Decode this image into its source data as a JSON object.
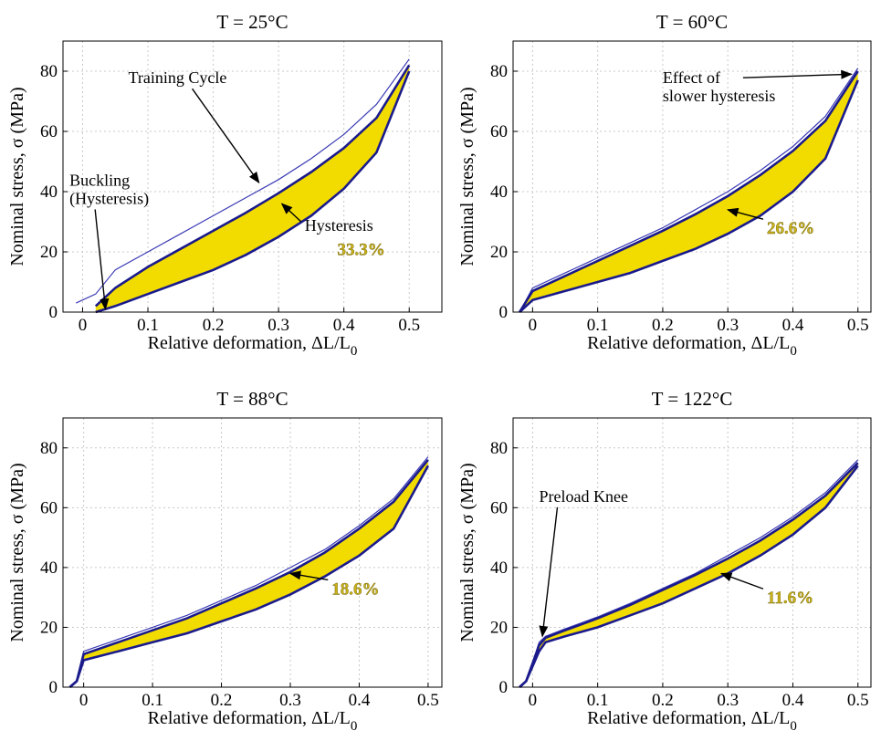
{
  "colors": {
    "fill": "#f2dc00",
    "loop_line": "#1a1a8c",
    "thin_line": "#3a3ab5",
    "grid": "#c8c8c8",
    "percent_text": "#c9b21a"
  },
  "chart_data": [
    {
      "type": "line",
      "title": "T = 25°C",
      "xlabel": "Relative deformation, ΔL/L",
      "xlabel_sub": "0",
      "ylabel": "Nominal stress, σ (MPa)",
      "xlim": [
        -0.03,
        0.55
      ],
      "ylim": [
        0,
        90
      ],
      "xticks": [
        0,
        0.1,
        0.2,
        0.3,
        0.4,
        0.5
      ],
      "xtick_labels": [
        "0",
        "0.1",
        "0.2",
        "0.3",
        "0.4",
        "0.5"
      ],
      "yticks": [
        0,
        20,
        40,
        60,
        80
      ],
      "ytick_labels": [
        "0",
        "20",
        "40",
        "60",
        "80"
      ],
      "grid": true,
      "series": [
        {
          "role": "training",
          "x": [
            -0.01,
            0.02,
            0.05,
            0.1,
            0.15,
            0.2,
            0.25,
            0.3,
            0.35,
            0.4,
            0.45,
            0.5
          ],
          "y": [
            3,
            6,
            14,
            20,
            26,
            32,
            38,
            44,
            51,
            59,
            69,
            84
          ]
        },
        {
          "role": "upper",
          "x": [
            0.02,
            0.05,
            0.1,
            0.15,
            0.2,
            0.25,
            0.3,
            0.35,
            0.4,
            0.45,
            0.5
          ],
          "y": [
            2,
            8,
            15,
            21,
            27,
            33,
            39.5,
            46.5,
            54.5,
            64.5,
            82
          ]
        },
        {
          "role": "lower",
          "x": [
            0.02,
            0.05,
            0.1,
            0.15,
            0.2,
            0.25,
            0.3,
            0.35,
            0.4,
            0.45,
            0.5
          ],
          "y": [
            0,
            2,
            6,
            10,
            14,
            19,
            25,
            32,
            41,
            53,
            80
          ]
        }
      ],
      "annotations": [
        {
          "text": "Training Cycle",
          "tx": 0.07,
          "ty": 76,
          "ax": 0.27,
          "ay": 43
        },
        {
          "text": "Buckling",
          "text2": "(Hysteresis)",
          "tx": -0.02,
          "ty": 42,
          "ax": 0.035,
          "ay": 1
        },
        {
          "text": "Hysteresis",
          "tx": 0.34,
          "ty": 27,
          "ax": 0.305,
          "ay": 36
        },
        {
          "text": "33.3%",
          "tx": 0.39,
          "ty": 19,
          "highlight": true
        }
      ]
    },
    {
      "type": "line",
      "title": "T = 60°C",
      "xlabel": "Relative deformation, ΔL/L",
      "xlabel_sub": "0",
      "ylabel": "Nominal stress, σ (MPa)",
      "xlim": [
        -0.03,
        0.52
      ],
      "ylim": [
        0,
        90
      ],
      "xticks": [
        0,
        0.1,
        0.2,
        0.3,
        0.4,
        0.5
      ],
      "xtick_labels": [
        "0",
        "0.1",
        "0.2",
        "0.3",
        "0.4",
        "0.5"
      ],
      "yticks": [
        0,
        20,
        40,
        60,
        80
      ],
      "ytick_labels": [
        "0",
        "20",
        "40",
        "60",
        "80"
      ],
      "grid": true,
      "series": [
        {
          "role": "training",
          "x": [
            -0.02,
            0.0,
            0.05,
            0.1,
            0.15,
            0.2,
            0.25,
            0.3,
            0.35,
            0.4,
            0.45,
            0.5
          ],
          "y": [
            0,
            8,
            13,
            18,
            23,
            28,
            34,
            40,
            47,
            55,
            65,
            81
          ]
        },
        {
          "role": "upper",
          "x": [
            -0.02,
            0.0,
            0.05,
            0.1,
            0.15,
            0.2,
            0.25,
            0.3,
            0.35,
            0.4,
            0.45,
            0.5
          ],
          "y": [
            0,
            7,
            12,
            17,
            22,
            27,
            32.5,
            38.5,
            45.5,
            53.5,
            63.5,
            80
          ]
        },
        {
          "role": "lower",
          "x": [
            -0.02,
            0.0,
            0.05,
            0.1,
            0.15,
            0.2,
            0.25,
            0.3,
            0.35,
            0.4,
            0.45,
            0.5
          ],
          "y": [
            0,
            4,
            7,
            10,
            13,
            17,
            21,
            26,
            32,
            40,
            51,
            77
          ]
        }
      ],
      "annotations": [
        {
          "text": "Effect of",
          "text2": "slower hysteresis",
          "tx": 0.2,
          "ty": 76,
          "ax": 0.49,
          "ay": 79
        },
        {
          "text": "26.6%",
          "tx": 0.36,
          "ty": 26,
          "ax": 0.3,
          "ay": 34,
          "highlight": true
        }
      ]
    },
    {
      "type": "line",
      "title": "T = 88°C",
      "xlabel": "Relative deformation, ΔL/L",
      "xlabel_sub": "0",
      "ylabel": "Nominal stress, σ (MPa)",
      "xlim": [
        -0.03,
        0.52
      ],
      "ylim": [
        0,
        90
      ],
      "xticks": [
        0,
        0.1,
        0.2,
        0.3,
        0.4,
        0.5
      ],
      "xtick_labels": [
        "0",
        "0.1",
        "0.2",
        "0.3",
        "0.4",
        "0.5"
      ],
      "yticks": [
        0,
        20,
        40,
        60,
        80
      ],
      "ytick_labels": [
        "0",
        "20",
        "40",
        "60",
        "80"
      ],
      "grid": true,
      "series": [
        {
          "role": "training",
          "x": [
            -0.02,
            -0.01,
            0.0,
            0.05,
            0.1,
            0.15,
            0.2,
            0.25,
            0.3,
            0.35,
            0.4,
            0.45,
            0.5
          ],
          "y": [
            0,
            2,
            12,
            16,
            20,
            24,
            29,
            34,
            40,
            46,
            54,
            63,
            77
          ]
        },
        {
          "role": "upper",
          "x": [
            -0.02,
            -0.01,
            0.0,
            0.05,
            0.1,
            0.15,
            0.2,
            0.25,
            0.3,
            0.35,
            0.4,
            0.45,
            0.5
          ],
          "y": [
            0,
            2,
            11,
            15,
            19,
            23,
            28,
            33,
            38.5,
            45,
            53,
            62,
            76
          ]
        },
        {
          "role": "lower",
          "x": [
            -0.02,
            -0.01,
            0.0,
            0.05,
            0.1,
            0.15,
            0.2,
            0.25,
            0.3,
            0.35,
            0.4,
            0.45,
            0.5
          ],
          "y": [
            0,
            2,
            9,
            12,
            15,
            18,
            22,
            26,
            31,
            37,
            44,
            53,
            74
          ]
        }
      ],
      "annotations": [
        {
          "text": "18.6%",
          "tx": 0.36,
          "ty": 31,
          "ax": 0.3,
          "ay": 38,
          "highlight": true
        }
      ]
    },
    {
      "type": "line",
      "title": "T = 122°C",
      "xlabel": "Relative deformation, ΔL/L",
      "xlabel_sub": "0",
      "ylabel": "Nominal stress, σ (MPa)",
      "xlim": [
        -0.03,
        0.52
      ],
      "ylim": [
        0,
        90
      ],
      "xticks": [
        0,
        0.1,
        0.2,
        0.3,
        0.4,
        0.5
      ],
      "xtick_labels": [
        "0",
        "0.1",
        "0.2",
        "0.3",
        "0.4",
        "0.5"
      ],
      "yticks": [
        0,
        20,
        40,
        60,
        80
      ],
      "ytick_labels": [
        "0",
        "20",
        "40",
        "60",
        "80"
      ],
      "grid": true,
      "series": [
        {
          "role": "training",
          "x": [
            -0.02,
            -0.01,
            0.0,
            0.01,
            0.02,
            0.05,
            0.1,
            0.15,
            0.2,
            0.25,
            0.3,
            0.35,
            0.4,
            0.45,
            0.5
          ],
          "y": [
            0,
            2,
            8,
            15,
            17,
            19.5,
            23.5,
            28,
            33,
            38,
            44,
            50,
            57,
            65,
            76
          ]
        },
        {
          "role": "upper",
          "x": [
            -0.02,
            -0.01,
            0.0,
            0.01,
            0.02,
            0.05,
            0.1,
            0.15,
            0.2,
            0.25,
            0.3,
            0.35,
            0.4,
            0.45,
            0.5
          ],
          "y": [
            0,
            2,
            8,
            14,
            16.5,
            19,
            23,
            27.5,
            32.5,
            37.5,
            43,
            49,
            56,
            64,
            75
          ]
        },
        {
          "role": "lower",
          "x": [
            -0.02,
            -0.01,
            0.0,
            0.01,
            0.02,
            0.05,
            0.1,
            0.15,
            0.2,
            0.25,
            0.3,
            0.35,
            0.4,
            0.45,
            0.5
          ],
          "y": [
            0,
            2,
            7,
            12,
            15,
            17,
            20,
            24,
            28,
            33,
            38,
            44,
            51,
            60,
            74
          ]
        }
      ],
      "annotations": [
        {
          "text": "Preload Knee",
          "tx": 0.01,
          "ty": 62,
          "ax": 0.015,
          "ay": 17
        },
        {
          "text": "11.6%",
          "tx": 0.36,
          "ty": 28,
          "ax": 0.29,
          "ay": 38,
          "highlight": true
        }
      ]
    }
  ]
}
